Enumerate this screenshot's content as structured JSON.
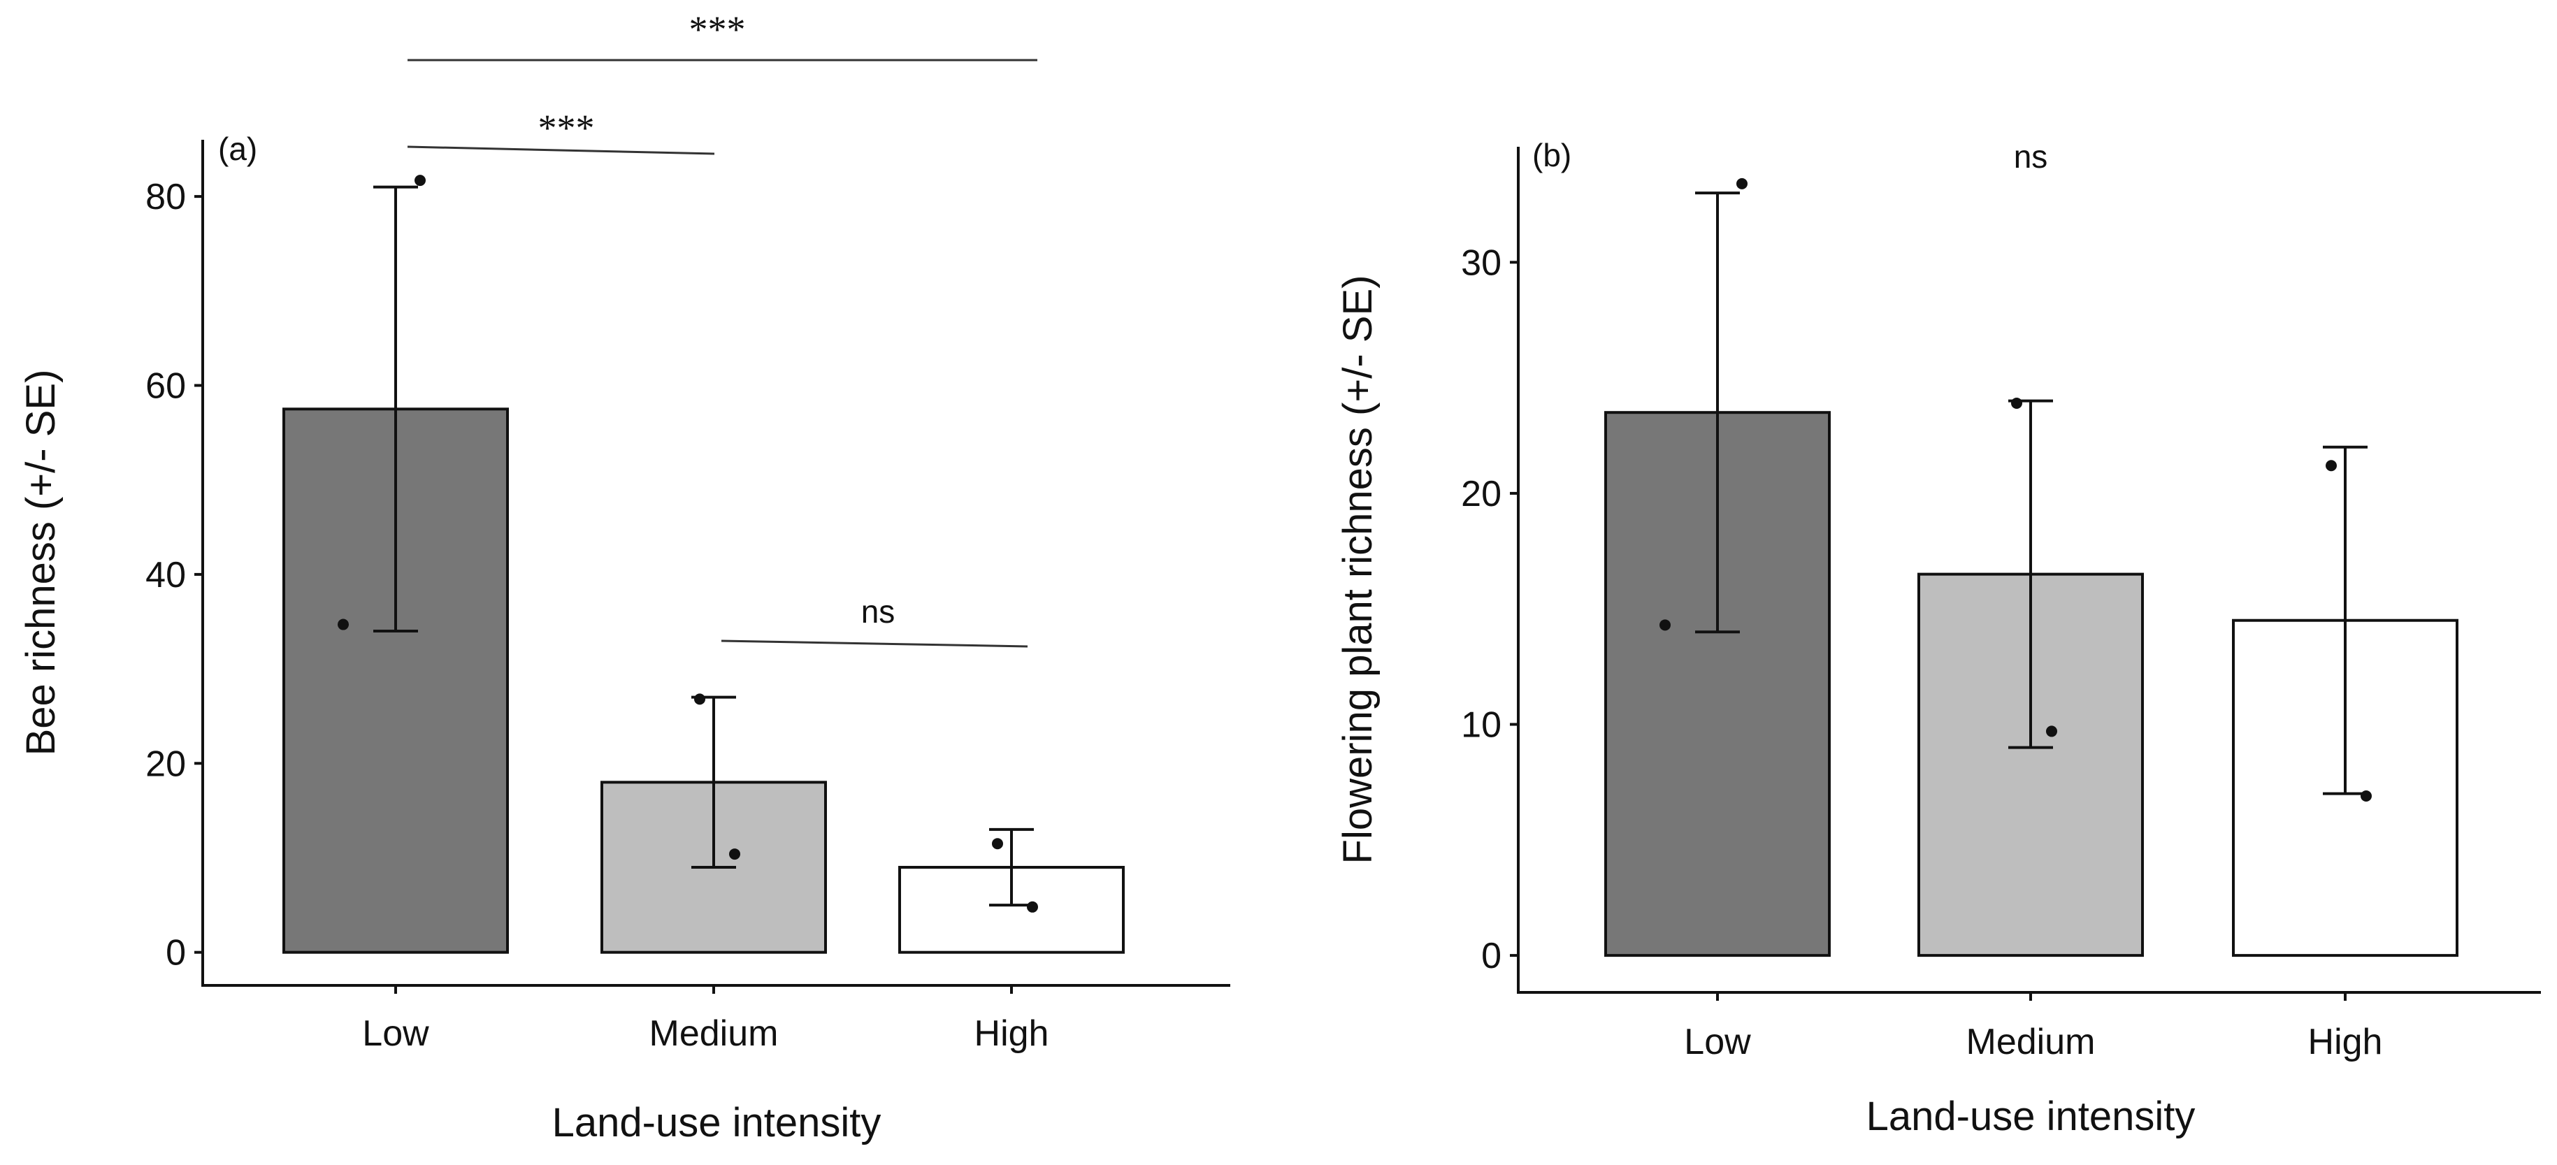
{
  "chart_data": [
    {
      "type": "bar",
      "panel_label": "(a)",
      "xlabel": "Land-use intensity",
      "ylabel": "Bee richness (+/- SE)",
      "categories": [
        "Low",
        "Medium",
        "High"
      ],
      "values": [
        57.5,
        18,
        9
      ],
      "error_low": [
        34,
        9,
        5
      ],
      "error_high": [
        81,
        27,
        13
      ],
      "bar_colors": [
        "#777777",
        "#bebebe",
        "#ffffff"
      ],
      "points": [
        {
          "category": "Low",
          "value": 34.7
        },
        {
          "category": "Low",
          "value": 81.7
        },
        {
          "category": "Medium",
          "value": 26.8
        },
        {
          "category": "Medium",
          "value": 10.4
        },
        {
          "category": "High",
          "value": 11.5
        },
        {
          "category": "High",
          "value": 4.8
        }
      ],
      "ylim": [
        -3.5,
        86
      ],
      "yticks": [
        0,
        20,
        40,
        60,
        80
      ],
      "ytick_labels": [
        "0",
        "20",
        "40",
        "60",
        "80"
      ],
      "significance": [
        {
          "from": "Low",
          "to": "High",
          "label": "***"
        },
        {
          "from": "Low",
          "to": "Medium",
          "label": "***"
        },
        {
          "from": "Medium",
          "to": "High",
          "label": "ns"
        }
      ]
    },
    {
      "type": "bar",
      "panel_label": "(b)",
      "xlabel": "Land-use intensity",
      "ylabel": "Flowering plant richness (+/- SE)",
      "categories": [
        "Low",
        "Medium",
        "High"
      ],
      "values": [
        23.5,
        16.5,
        14.5
      ],
      "error_low": [
        14,
        9,
        7
      ],
      "error_high": [
        33,
        24,
        22
      ],
      "bar_colors": [
        "#777777",
        "#bebebe",
        "#ffffff"
      ],
      "points": [
        {
          "category": "Low",
          "value": 14.3
        },
        {
          "category": "Low",
          "value": 33.4
        },
        {
          "category": "Medium",
          "value": 23.9
        },
        {
          "category": "Medium",
          "value": 9.7
        },
        {
          "category": "High",
          "value": 21.2
        },
        {
          "category": "High",
          "value": 6.9
        }
      ],
      "ylim": [
        -1.6,
        35
      ],
      "yticks": [
        0,
        10,
        20,
        30
      ],
      "ytick_labels": [
        "0",
        "10",
        "20",
        "30"
      ],
      "overall_test": "ns"
    }
  ]
}
